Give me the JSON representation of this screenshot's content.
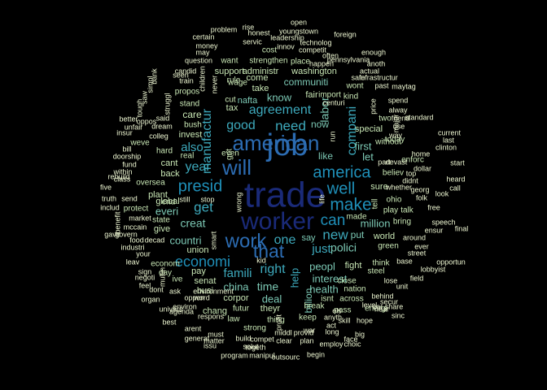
{
  "palette": {
    "background": "#000000",
    "tier1": "#1a2a78",
    "tier2": "#2c6cb2",
    "tier3": "#1f8fb8",
    "tier4": "#3da9bc",
    "tier5": "#7cc8b4",
    "tier6": "#c9e7b5",
    "tier7": "#eef7d2"
  },
  "words": [
    {
      "text": "trade",
      "tier": 1
    },
    {
      "text": "worker",
      "tier": 1
    },
    {
      "text": "job",
      "tier": 2
    },
    {
      "text": "american",
      "tier": 2
    },
    {
      "text": "will",
      "tier": 2
    },
    {
      "text": "work",
      "tier": 2
    },
    {
      "text": "that",
      "tier": 2
    },
    {
      "text": "america",
      "tier": 3
    },
    {
      "text": "make",
      "tier": 3
    },
    {
      "text": "well",
      "tier": 3
    },
    {
      "text": "presid",
      "tier": 3
    },
    {
      "text": "can",
      "tier": 3
    },
    {
      "text": "economi",
      "tier": 3
    },
    {
      "text": "agreement",
      "tier": 4
    },
    {
      "text": "manufactur",
      "tier": 4
    },
    {
      "text": "get",
      "tier": 4
    },
    {
      "text": "year",
      "tier": 4
    },
    {
      "text": "right",
      "tier": 4
    },
    {
      "text": "one",
      "tier": 4
    },
    {
      "text": "new",
      "tier": 4
    },
    {
      "text": "need",
      "tier": 4
    },
    {
      "text": "good",
      "tier": 4
    },
    {
      "text": "also",
      "tier": 4
    },
    {
      "text": "compani",
      "tier": 4
    },
    {
      "text": "famili",
      "tier": 4
    },
    {
      "text": "just",
      "tier": 4
    },
    {
      "text": "help",
      "tier": 4
    },
    {
      "text": "creat",
      "tier": 5
    },
    {
      "text": "polici",
      "tier": 5
    },
    {
      "text": "countri",
      "tier": 5
    },
    {
      "text": "china",
      "tier": 5
    },
    {
      "text": "time",
      "tier": 5
    },
    {
      "text": "peopl",
      "tier": 5
    },
    {
      "text": "interest",
      "tier": 5
    },
    {
      "text": "health",
      "tier": 5
    },
    {
      "text": "everi",
      "tier": 5
    },
    {
      "text": "billion",
      "tier": 5
    },
    {
      "text": "million",
      "tier": 5
    },
    {
      "text": "deal",
      "tier": 5
    },
    {
      "text": "first",
      "tier": 5
    },
    {
      "text": "let",
      "tier": 5
    },
    {
      "text": "put",
      "tier": 5
    },
    {
      "text": "labor",
      "tier": 5
    },
    {
      "text": "like",
      "tier": 5
    },
    {
      "text": "now",
      "tier": 5
    },
    {
      "text": "know",
      "tier": 5
    },
    {
      "text": "say",
      "tier": 5
    },
    {
      "text": "communiti",
      "tier": 5
    },
    {
      "text": "nafta",
      "tier": 5
    },
    {
      "text": "washington",
      "tier": 6
    },
    {
      "text": "care",
      "tier": 6
    },
    {
      "text": "tax",
      "tier": 6
    },
    {
      "text": "union",
      "tier": 6
    },
    {
      "text": "pay",
      "tier": 6
    },
    {
      "text": "fight",
      "tier": 6
    },
    {
      "text": "special",
      "tier": 6
    },
    {
      "text": "sure",
      "tier": 6
    },
    {
      "text": "world",
      "tier": 6
    },
    {
      "text": "senat",
      "tier": 6
    },
    {
      "text": "fair",
      "tier": 6
    },
    {
      "text": "back",
      "tier": 6
    },
    {
      "text": "invest",
      "tier": 6
    },
    {
      "text": "plant",
      "tier": 6
    },
    {
      "text": "global",
      "tier": 6
    },
    {
      "text": "corpor",
      "tier": 6
    },
    {
      "text": "theyr",
      "tier": 6
    },
    {
      "text": "come",
      "tier": 6
    },
    {
      "text": "take",
      "tier": 6
    },
    {
      "text": "administr",
      "tier": 6
    },
    {
      "text": "support",
      "tier": 6
    },
    {
      "text": "busi",
      "tier": 6
    },
    {
      "text": "cant",
      "tier": 6
    },
    {
      "text": "give",
      "tier": 6
    },
    {
      "text": "ohio",
      "tier": 6
    },
    {
      "text": "tell",
      "tier": 6
    },
    {
      "text": "chang",
      "tier": 6
    },
    {
      "text": "end",
      "tier": 6
    },
    {
      "text": "bush",
      "tier": 6
    },
    {
      "text": "hard",
      "tier": 6
    },
    {
      "text": "state",
      "tier": 6
    },
    {
      "text": "oversea",
      "tier": 6
    },
    {
      "text": "wage",
      "tier": 6
    },
    {
      "text": "real",
      "tier": 6
    },
    {
      "text": "close",
      "tier": 6
    },
    {
      "text": "across",
      "tier": 6
    },
    {
      "text": "nation",
      "tier": 6
    },
    {
      "text": "isnt",
      "tier": 6
    },
    {
      "text": "keep",
      "tier": 6
    },
    {
      "text": "break",
      "tier": 6
    },
    {
      "text": "bring",
      "tier": 6
    },
    {
      "text": "green",
      "tier": 6
    },
    {
      "text": "think",
      "tier": 6
    },
    {
      "text": "play",
      "tier": 6
    },
    {
      "text": "believ",
      "tier": 6
    },
    {
      "text": "today",
      "tier": 6
    },
    {
      "text": "enforc",
      "tier": 6
    },
    {
      "text": "steel",
      "tier": 6
    },
    {
      "text": "energi",
      "tier": 6
    },
    {
      "text": "protect",
      "tier": 6
    },
    {
      "text": "stand",
      "tier": 6
    },
    {
      "text": "weve",
      "tier": 6
    },
    {
      "text": "without",
      "tier": 6
    },
    {
      "text": "wont",
      "tier": 6
    },
    {
      "text": "import",
      "tier": 6
    },
    {
      "text": "want",
      "tier": 6
    },
    {
      "text": "place",
      "tier": 6
    },
    {
      "text": "propos",
      "tier": 6
    },
    {
      "text": "strengthen",
      "tier": 6
    },
    {
      "text": "cost",
      "tier": 6
    },
    {
      "text": "pass",
      "tier": 6
    },
    {
      "text": "thing",
      "tier": 6
    },
    {
      "text": "law",
      "tier": 6
    },
    {
      "text": "futur",
      "tier": 6
    },
    {
      "text": "econom",
      "tier": 6
    },
    {
      "text": "day",
      "tier": 6
    },
    {
      "text": "ive",
      "tier": 6
    },
    {
      "text": "got",
      "tier": 6
    },
    {
      "text": "even",
      "tier": 6
    },
    {
      "text": "made",
      "tier": 6
    },
    {
      "text": "talk",
      "tier": 6
    },
    {
      "text": "two",
      "tier": 6
    },
    {
      "text": "kind",
      "tier": 6
    },
    {
      "text": "cut",
      "tier": 6
    },
    {
      "text": "rule",
      "tier": 6
    },
    {
      "text": "strong",
      "tier": 6
    },
    {
      "text": "said",
      "tier": 7
    },
    {
      "text": "colleg",
      "tier": 7
    },
    {
      "text": "dream",
      "tier": 7
    },
    {
      "text": "struggl",
      "tier": 7
    },
    {
      "text": "train",
      "tier": 7
    },
    {
      "text": "candid",
      "tier": 7
    },
    {
      "text": "seen",
      "tier": 7
    },
    {
      "text": "children",
      "tier": 7
    },
    {
      "text": "never",
      "tier": 7
    },
    {
      "text": "question",
      "tier": 7
    },
    {
      "text": "may",
      "tier": 7
    },
    {
      "text": "money",
      "tier": 7
    },
    {
      "text": "certain",
      "tier": 7
    },
    {
      "text": "problem",
      "tier": 7
    },
    {
      "text": "rise",
      "tier": 7
    },
    {
      "text": "honest",
      "tier": 7
    },
    {
      "text": "servic",
      "tier": 7
    },
    {
      "text": "open",
      "tier": 7
    },
    {
      "text": "youngstown",
      "tier": 7
    },
    {
      "text": "leadership",
      "tier": 7
    },
    {
      "text": "technolog",
      "tier": 7
    },
    {
      "text": "competit",
      "tier": 7
    },
    {
      "text": "innov",
      "tier": 7
    },
    {
      "text": "often",
      "tier": 7
    },
    {
      "text": "foreign",
      "tier": 7
    },
    {
      "text": "enough",
      "tier": 7
    },
    {
      "text": "pennsylvania",
      "tier": 7
    },
    {
      "text": "happen",
      "tier": 7
    },
    {
      "text": "anoth",
      "tier": 7
    },
    {
      "text": "actual",
      "tier": 7
    },
    {
      "text": "safe",
      "tier": 7
    },
    {
      "text": "infrastructur",
      "tier": 7
    },
    {
      "text": "past",
      "tier": 7
    },
    {
      "text": "maytag",
      "tier": 7
    },
    {
      "text": "spend",
      "tier": 7
    },
    {
      "text": "price",
      "tier": 7
    },
    {
      "text": "centuri",
      "tier": 7
    },
    {
      "text": "alway",
      "tier": 7
    },
    {
      "text": "friend",
      "tier": 7
    },
    {
      "text": "standard",
      "tier": 7
    },
    {
      "text": "use",
      "tier": 7
    },
    {
      "text": "major",
      "tier": 7
    },
    {
      "text": "way",
      "tier": 7
    },
    {
      "text": "current",
      "tier": 7
    },
    {
      "text": "last",
      "tier": 7
    },
    {
      "text": "clinton",
      "tier": 7
    },
    {
      "text": "home",
      "tier": 7
    },
    {
      "text": "devast",
      "tier": 7
    },
    {
      "text": "part",
      "tier": 7
    },
    {
      "text": "dollar",
      "tier": 7
    },
    {
      "text": "start",
      "tier": 7
    },
    {
      "text": "top",
      "tier": 7
    },
    {
      "text": "heard",
      "tier": 7
    },
    {
      "text": "call",
      "tier": 7
    },
    {
      "text": "didnt",
      "tier": 7
    },
    {
      "text": "georg",
      "tier": 7
    },
    {
      "text": "whether",
      "tier": 7
    },
    {
      "text": "look",
      "tier": 7
    },
    {
      "text": "folk",
      "tier": 7
    },
    {
      "text": "free",
      "tier": 7
    },
    {
      "text": "speech",
      "tier": 7
    },
    {
      "text": "ensur",
      "tier": 7
    },
    {
      "text": "final",
      "tier": 7
    },
    {
      "text": "around",
      "tier": 7
    },
    {
      "text": "street",
      "tier": 7
    },
    {
      "text": "ever",
      "tier": 7
    },
    {
      "text": "base",
      "tier": 7
    },
    {
      "text": "opportun",
      "tier": 7
    },
    {
      "text": "lobbyist",
      "tier": 7
    },
    {
      "text": "lose",
      "tier": 7
    },
    {
      "text": "field",
      "tier": 7
    },
    {
      "text": "unit",
      "tier": 7
    },
    {
      "text": "behind",
      "tier": 7
    },
    {
      "text": "secur",
      "tier": 7
    },
    {
      "text": "share",
      "tier": 7
    },
    {
      "text": "near",
      "tier": 7
    },
    {
      "text": "car",
      "tier": 7
    },
    {
      "text": "sinc",
      "tier": 7
    },
    {
      "text": "skill",
      "tier": 7
    },
    {
      "text": "hope",
      "tier": 7
    },
    {
      "text": "level",
      "tier": 7
    },
    {
      "text": "big",
      "tier": 7
    },
    {
      "text": "face",
      "tier": 7
    },
    {
      "text": "long",
      "tier": 7
    },
    {
      "text": "employ",
      "tier": 7
    },
    {
      "text": "choic",
      "tier": 7
    },
    {
      "text": "provid",
      "tier": 7
    },
    {
      "text": "act",
      "tier": 7
    },
    {
      "text": "anyth",
      "tier": 7
    },
    {
      "text": "war",
      "tier": 7
    },
    {
      "text": "plan",
      "tier": 7
    },
    {
      "text": "middl",
      "tier": 7
    },
    {
      "text": "clear",
      "tier": 7
    },
    {
      "text": "profit",
      "tier": 7
    },
    {
      "text": "compet",
      "tier": 7
    },
    {
      "text": "togeth",
      "tier": 7
    },
    {
      "text": "must",
      "tier": 7
    },
    {
      "text": "build",
      "tier": 7
    },
    {
      "text": "solut",
      "tier": 7
    },
    {
      "text": "manipul",
      "tier": 7
    },
    {
      "text": "outsourc",
      "tier": 7
    },
    {
      "text": "begin",
      "tier": 7
    },
    {
      "text": "program",
      "tier": 7
    },
    {
      "text": "issu",
      "tier": 7
    },
    {
      "text": "matter",
      "tier": 7
    },
    {
      "text": "generat",
      "tier": 7
    },
    {
      "text": "arent",
      "tier": 7
    },
    {
      "text": "best",
      "tier": 7
    },
    {
      "text": "agenda",
      "tier": 7
    },
    {
      "text": "respons",
      "tier": 7
    },
    {
      "text": "univers",
      "tier": 7
    },
    {
      "text": "organ",
      "tier": 7
    },
    {
      "text": "environ",
      "tier": 7
    },
    {
      "text": "word",
      "tier": 7
    },
    {
      "text": "environment",
      "tier": 7
    },
    {
      "text": "oppon",
      "tier": 7
    },
    {
      "text": "dont",
      "tier": 7
    },
    {
      "text": "ask",
      "tier": 7
    },
    {
      "text": "feel",
      "tier": 7
    },
    {
      "text": "negoti",
      "tier": 7
    },
    {
      "text": "multin",
      "tier": 7
    },
    {
      "text": "leav",
      "tier": 7
    },
    {
      "text": "sign",
      "tier": 7
    },
    {
      "text": "industri",
      "tier": 7
    },
    {
      "text": "your",
      "tier": 7
    },
    {
      "text": "decad",
      "tier": 7
    },
    {
      "text": "food",
      "tier": 7
    },
    {
      "text": "govern",
      "tier": 7
    },
    {
      "text": "gave",
      "tier": 7
    },
    {
      "text": "mccain",
      "tier": 7
    },
    {
      "text": "market",
      "tier": 7
    },
    {
      "text": "benefit",
      "tier": 7
    },
    {
      "text": "includ",
      "tier": 7
    },
    {
      "text": "truth",
      "tier": 7
    },
    {
      "text": "send",
      "tier": 7
    },
    {
      "text": "five",
      "tier": 7
    },
    {
      "text": "class",
      "tier": 7
    },
    {
      "text": "within",
      "tier": 7
    },
    {
      "text": "fund",
      "tier": 7
    },
    {
      "text": "doorship",
      "tier": 7
    },
    {
      "text": "rebuild",
      "tier": 7
    },
    {
      "text": "bill",
      "tier": 7
    },
    {
      "text": "oppos",
      "tier": 7
    },
    {
      "text": "insur",
      "tier": 7
    },
    {
      "text": "unfair",
      "tier": 7
    },
    {
      "text": "better",
      "tier": 7
    },
    {
      "text": "tough",
      "tier": 7
    },
    {
      "text": "saw",
      "tier": 7
    },
    {
      "text": "simpl",
      "tier": 7
    },
    {
      "text": "bank",
      "tier": 7
    },
    {
      "text": "smart",
      "tier": 7
    },
    {
      "text": "wrong",
      "tier": 7
    },
    {
      "text": "stop",
      "tier": 7
    },
    {
      "text": "still",
      "tier": 7
    },
    {
      "text": "kid",
      "tier": 7
    },
    {
      "text": "els",
      "tier": 7
    },
    {
      "text": "life",
      "tier": 7
    },
    {
      "text": "run",
      "tier": 7
    },
    {
      "text": "deliv",
      "tier": 7
    },
    {
      "text": "wall",
      "tier": 7
    },
    {
      "text": "what",
      "tier": 7
    }
  ]
}
